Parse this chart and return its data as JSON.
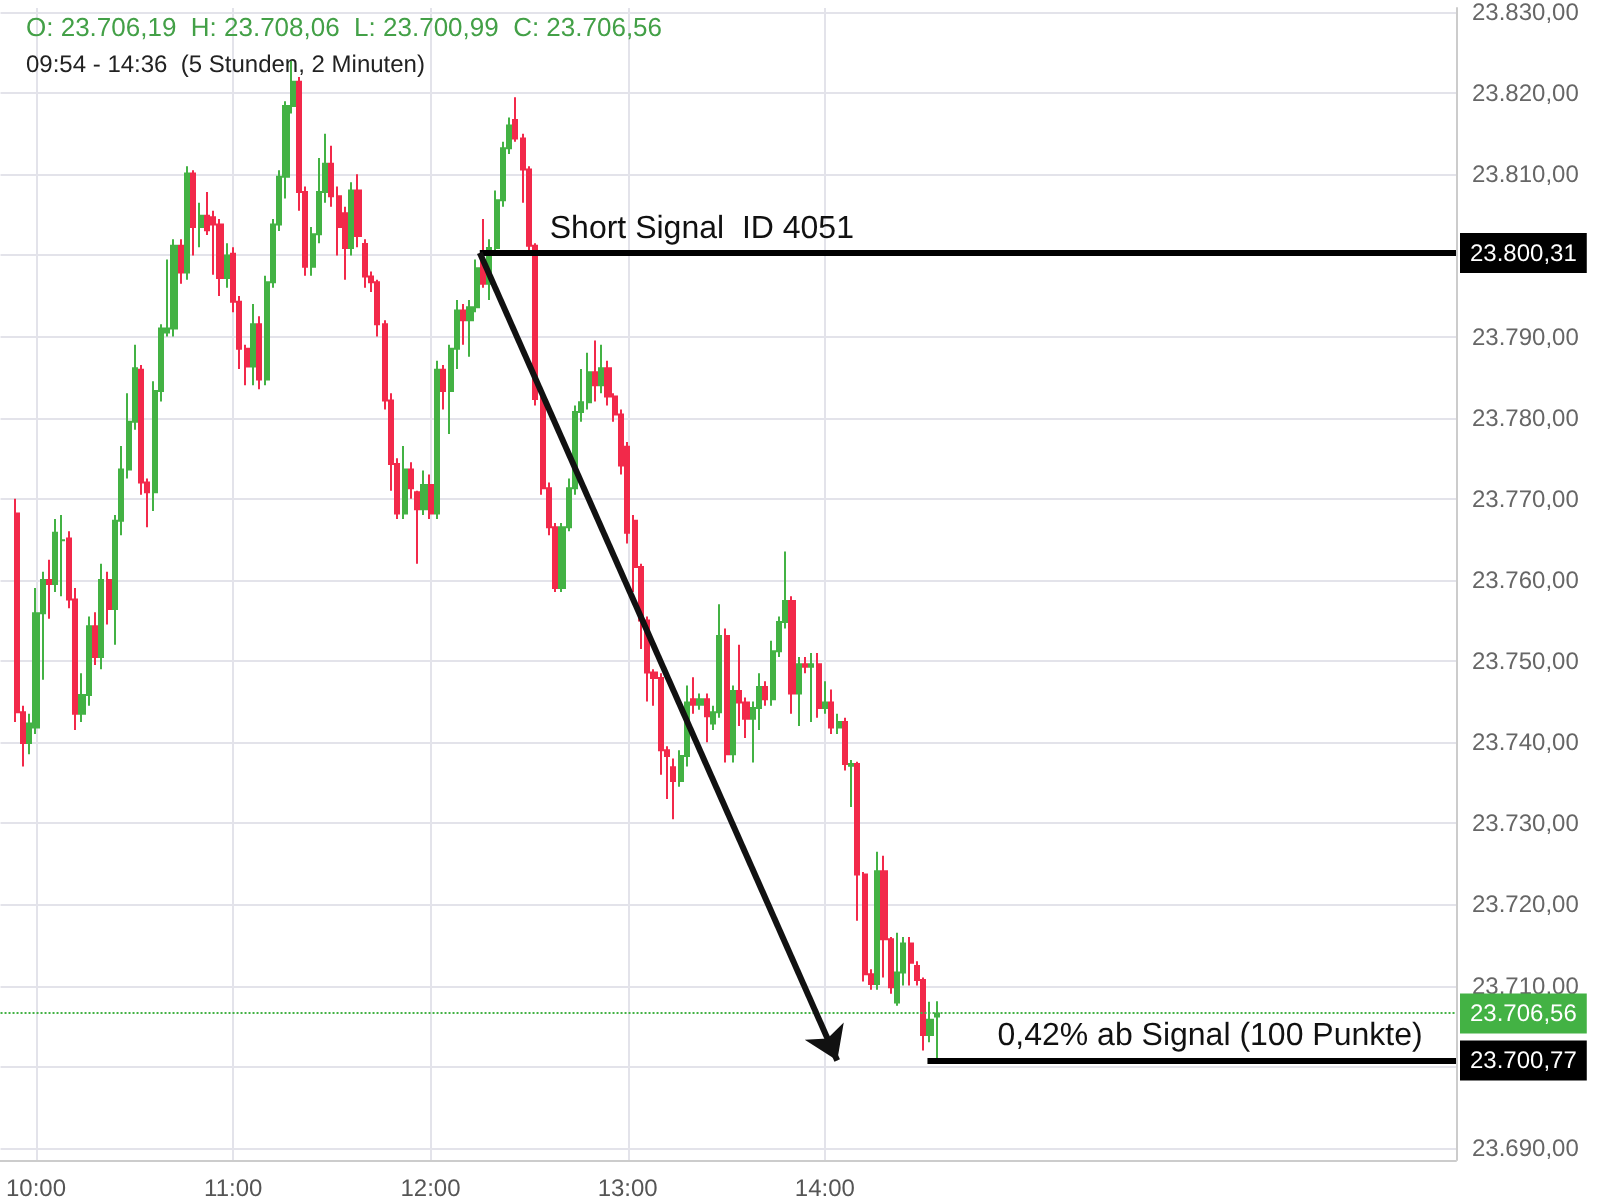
{
  "chart_data": {
    "type": "candlestick",
    "title": "O: 23.706,19  H: 23.708,06  L: 23.700,99  C: 23.706,56",
    "subtitle": "09:54 - 14:36  (5 Stunden, 2 Minuten)",
    "colors": [
      "#f2294a",
      "#f2294a",
      "#43b244",
      "#43b244",
      "#43b244",
      "#f2294a",
      "#43b244",
      "#43b244",
      "#f2294a",
      "#f2294a",
      "#43b244",
      "#43b244",
      "#f2294a",
      "#43b244",
      "#f2294a",
      "#43b244",
      "#43b244",
      "#43b244",
      "#43b244",
      "#f2294a",
      "#f2294a",
      "#43b244",
      "#43b244",
      "#43b244",
      "#43b244",
      "#f2294a",
      "#43b244",
      "#f2294a",
      "#43b244",
      "#f2294a",
      "#f2294a",
      "#f2294a",
      "#43b244",
      "#f2294a",
      "#f2294a",
      "#f2294a",
      "#43b244",
      "#f2294a",
      "#43b244",
      "#43b244",
      "#43b244",
      "#43b244",
      "#43b244",
      "#f2294a",
      "#f2294a",
      "#43b244",
      "#43b244",
      "#43b244",
      "#f2294a",
      "#f2294a",
      "#f2294a",
      "#43b244",
      "#f2294a",
      "#f2294a",
      "#f2294a",
      "#f2294a",
      "#f2294a",
      "#f2294a",
      "#f2294a",
      "#43b244",
      "#f2294a",
      "#f2294a",
      "#43b244",
      "#f2294a",
      "#43b244",
      "#f2294a",
      "#43b244",
      "#43b244",
      "#f2294a",
      "#43b244",
      "#43b244",
      "#f2294a",
      "#43b244",
      "#43b244",
      "#43b244",
      "#43b244",
      "#f2294a",
      "#f2294a",
      "#f2294a",
      "#f2294a",
      "#f2294a",
      "#f2294a",
      "#f2294a",
      "#43b244",
      "#43b244",
      "#43b244",
      "#43b244",
      "#43b244",
      "#f2294a",
      "#43b244",
      "#f2294a",
      "#f2294a",
      "#f2294a",
      "#f2294a",
      "#f2294a",
      "#f2294a",
      "#f2294a",
      "#f2294a",
      "#f2294a",
      "#f2294a",
      "#f2294a",
      "#43b244",
      "#43b244",
      "#f2294a",
      "#43b244",
      "#f2294a",
      "#43b244",
      "#43b244",
      "#f2294a",
      "#43b244",
      "#f2294a",
      "#f2294a",
      "#43b244",
      "#43b244",
      "#f2294a",
      "#43b244",
      "#43b244",
      "#43b244",
      "#f2294a",
      "#43b244",
      "#f2294a",
      "#43b244",
      "#f2294a",
      "#43b244",
      "#f2294a",
      "#43b244",
      "#f2294a",
      "#43b244",
      "#f2294a",
      "#f2294a",
      "#f2294a",
      "#43b244",
      "#f2294a",
      "#f2294a",
      "#43b244",
      "#43b244",
      "#f2294a",
      "#f2294a",
      "#f2294a",
      "#43b244",
      "#43b244"
    ],
    "x": [
      9.9,
      9.933,
      9.967,
      10,
      10.033,
      10.067,
      10.1,
      10.133,
      10.167,
      10.2,
      10.233,
      10.267,
      10.3,
      10.333,
      10.367,
      10.4,
      10.433,
      10.467,
      10.5,
      10.533,
      10.567,
      10.6,
      10.633,
      10.667,
      10.7,
      10.733,
      10.767,
      10.8,
      10.833,
      10.867,
      10.9,
      10.933,
      10.967,
      11,
      11.033,
      11.067,
      11.1,
      11.133,
      11.167,
      11.2,
      11.233,
      11.267,
      11.3,
      11.333,
      11.367,
      11.4,
      11.433,
      11.467,
      11.5,
      11.533,
      11.567,
      11.6,
      11.633,
      11.667,
      11.7,
      11.733,
      11.767,
      11.8,
      11.833,
      11.867,
      11.9,
      11.933,
      11.967,
      12,
      12.033,
      12.067,
      12.1,
      12.133,
      12.167,
      12.2,
      12.233,
      12.267,
      12.3,
      12.333,
      12.367,
      12.4,
      12.433,
      12.467,
      12.5,
      12.533,
      12.567,
      12.6,
      12.633,
      12.667,
      12.7,
      12.733,
      12.767,
      12.8,
      12.833,
      12.867,
      12.9,
      12.933,
      12.967,
      13,
      13.033,
      13.067,
      13.1,
      13.133,
      13.167,
      13.2,
      13.233,
      13.267,
      13.3,
      13.333,
      13.367,
      13.4,
      13.433,
      13.467,
      13.5,
      13.533,
      13.567,
      13.6,
      13.633,
      13.667,
      13.7,
      13.733,
      13.767,
      13.8,
      13.833,
      13.867,
      13.9,
      13.933,
      13.967,
      14,
      14.033,
      14.067,
      14.1,
      14.133,
      14.167,
      14.2,
      14.233,
      14.267,
      14.3,
      14.333,
      14.367,
      14.4,
      14.433,
      14.467,
      14.5,
      14.533,
      14.567
    ],
    "ohlc": [
      [
        23768.2,
        23770.0,
        23742.5,
        23743.7
      ],
      [
        23743.7,
        23744.5,
        23737.0,
        23739.9
      ],
      [
        23739.9,
        23743.5,
        23738.5,
        23742.3
      ],
      [
        23741.8,
        23759.0,
        23741.0,
        23755.9
      ],
      [
        23755.9,
        23761.0,
        23747.7,
        23760.0
      ],
      [
        23760.0,
        23762.5,
        23755.2,
        23759.5
      ],
      [
        23759.5,
        23767.5,
        23758.5,
        23765.8
      ],
      [
        23764.9,
        23768.0,
        23758.0,
        23764.9
      ],
      [
        23765.1,
        23766.0,
        23756.5,
        23757.6
      ],
      [
        23757.6,
        23759.0,
        23741.5,
        23743.5
      ],
      [
        23743.5,
        23748.5,
        23742.5,
        23745.8
      ],
      [
        23745.8,
        23755.5,
        23744.5,
        23754.3
      ],
      [
        23754.3,
        23756.0,
        23749.5,
        23750.5
      ],
      [
        23750.5,
        23762.0,
        23749.0,
        23760.0
      ],
      [
        23760.0,
        23761.0,
        23754.5,
        23756.4
      ],
      [
        23756.4,
        23768.0,
        23752.0,
        23767.3
      ],
      [
        23767.3,
        23776.5,
        23765.5,
        23773.6
      ],
      [
        23773.6,
        23783.0,
        23772.5,
        23779.5
      ],
      [
        23779.5,
        23789.0,
        23778.5,
        23786.1
      ],
      [
        23785.9,
        23786.5,
        23770.5,
        23772.0
      ],
      [
        23772.0,
        23772.5,
        23766.5,
        23770.8
      ],
      [
        23770.8,
        23784.5,
        23768.5,
        23783.3
      ],
      [
        23783.3,
        23791.5,
        23782.0,
        23791.0
      ],
      [
        23790.5,
        23799.5,
        23790.0,
        23791.0
      ],
      [
        23791.0,
        23802.0,
        23790.0,
        23801.2
      ],
      [
        23801.2,
        23802.0,
        23796.5,
        23797.9
      ],
      [
        23797.9,
        23811.0,
        23797.0,
        23810.1
      ],
      [
        23810.1,
        23810.5,
        23800.0,
        23803.5
      ],
      [
        23803.5,
        23806.5,
        23801.0,
        23804.9
      ],
      [
        23804.9,
        23807.8,
        23802.5,
        23803.1
      ],
      [
        23804.7,
        23805.5,
        23797.6,
        23803.8
      ],
      [
        23803.8,
        23804.5,
        23795.0,
        23797.2
      ],
      [
        23797.2,
        23801.5,
        23796.0,
        23800.0
      ],
      [
        23800.2,
        23801.0,
        23793.0,
        23794.3
      ],
      [
        23794.3,
        23795.0,
        23786.0,
        23788.5
      ],
      [
        23788.5,
        23789.0,
        23784.0,
        23786.3
      ],
      [
        23786.3,
        23794.0,
        23784.0,
        23791.5
      ],
      [
        23791.5,
        23792.5,
        23783.5,
        23784.7
      ],
      [
        23784.7,
        23797.5,
        23784.0,
        23796.7
      ],
      [
        23796.7,
        23804.5,
        23796.0,
        23803.8
      ],
      [
        23803.8,
        23810.5,
        23803.0,
        23809.7
      ],
      [
        23809.7,
        23819.0,
        23807.0,
        23818.4
      ],
      [
        23818.4,
        23824.0,
        23817.5,
        23821.4
      ],
      [
        23821.4,
        23822.0,
        23805.5,
        23807.8
      ],
      [
        23807.8,
        23808.5,
        23797.5,
        23798.6
      ],
      [
        23798.6,
        23803.5,
        23797.5,
        23802.6
      ],
      [
        23802.6,
        23812.0,
        23801.5,
        23807.8
      ],
      [
        23807.8,
        23815.0,
        23806.5,
        23811.3
      ],
      [
        23811.3,
        23813.5,
        23806.0,
        23807.3
      ],
      [
        23807.3,
        23808.5,
        23800.0,
        23803.5
      ],
      [
        23805.2,
        23806.0,
        23797.0,
        23800.9
      ],
      [
        23800.9,
        23809.0,
        23800.0,
        23808.0
      ],
      [
        23808.0,
        23810.0,
        23801.0,
        23802.4
      ],
      [
        23801.4,
        23802.0,
        23796.0,
        23797.4
      ],
      [
        23797.4,
        23798.0,
        23795.5,
        23796.7
      ],
      [
        23796.7,
        23797.0,
        23790.0,
        23791.5
      ],
      [
        23791.5,
        23792.0,
        23781.0,
        23782.1
      ],
      [
        23782.1,
        23783.0,
        23771.0,
        23774.3
      ],
      [
        23774.3,
        23775.0,
        23767.5,
        23768.2
      ],
      [
        23768.2,
        23776.5,
        23767.5,
        23773.6
      ],
      [
        23773.6,
        23774.5,
        23770.0,
        23771.3
      ],
      [
        23770.8,
        23771.0,
        23762.0,
        23768.7
      ],
      [
        23768.7,
        23773.5,
        23768.0,
        23771.7
      ],
      [
        23771.7,
        23773.0,
        23767.5,
        23768.2
      ],
      [
        23768.2,
        23787.0,
        23767.5,
        23785.9
      ],
      [
        23785.9,
        23786.5,
        23781.0,
        23783.3
      ],
      [
        23783.3,
        23789.0,
        23778.0,
        23788.5
      ],
      [
        23788.5,
        23794.5,
        23786.0,
        23793.2
      ],
      [
        23793.2,
        23794.0,
        23789.0,
        23792.0
      ],
      [
        23792.0,
        23794.5,
        23787.5,
        23793.6
      ],
      [
        23793.6,
        23799.5,
        23793.0,
        23798.4
      ],
      [
        23799.3,
        23804.5,
        23796.0,
        23796.5
      ],
      [
        23796.5,
        23802.0,
        23794.5,
        23800.9
      ],
      [
        23800.9,
        23808.0,
        23800.0,
        23806.8
      ],
      [
        23806.8,
        23814.0,
        23806.0,
        23813.2
      ],
      [
        23813.2,
        23817.0,
        23812.5,
        23816.0
      ],
      [
        23816.7,
        23819.5,
        23814.0,
        23814.4
      ],
      [
        23814.4,
        23815.0,
        23806.5,
        23810.6
      ],
      [
        23810.6,
        23811.0,
        23800.5,
        23801.2
      ],
      [
        23801.2,
        23801.5,
        23781.5,
        23782.3
      ],
      [
        23782.3,
        23783.0,
        23770.5,
        23771.3
      ],
      [
        23771.3,
        23772.0,
        23765.5,
        23766.5
      ],
      [
        23766.5,
        23767.0,
        23758.5,
        23759.0
      ],
      [
        23759.0,
        23767.0,
        23758.5,
        23766.5
      ],
      [
        23766.5,
        23772.5,
        23766.0,
        23771.3
      ],
      [
        23771.3,
        23781.5,
        23770.5,
        23780.7
      ],
      [
        23780.7,
        23786.0,
        23779.5,
        23781.9
      ],
      [
        23781.9,
        23788.0,
        23781.0,
        23785.6
      ],
      [
        23785.6,
        23789.5,
        23782.0,
        23784.0
      ],
      [
        23784.0,
        23789.0,
        23783.0,
        23786.1
      ],
      [
        23786.1,
        23787.0,
        23781.5,
        23782.6
      ],
      [
        23782.6,
        23783.0,
        23779.5,
        23780.4
      ],
      [
        23780.4,
        23781.0,
        23773.0,
        23774.1
      ],
      [
        23776.4,
        23777.0,
        23764.5,
        23765.8
      ],
      [
        23767.3,
        23768.0,
        23758.5,
        23761.6
      ],
      [
        23761.6,
        23762.0,
        23751.5,
        23755.0
      ],
      [
        23755.0,
        23755.5,
        23745.0,
        23748.6
      ],
      [
        23748.6,
        23749.0,
        23744.5,
        23747.9
      ],
      [
        23747.9,
        23748.5,
        23736.0,
        23739.0
      ],
      [
        23739.0,
        23739.5,
        23733.0,
        23738.3
      ],
      [
        23736.9,
        23738.0,
        23730.5,
        23735.2
      ],
      [
        23735.2,
        23739.0,
        23734.5,
        23738.3
      ],
      [
        23738.3,
        23747.0,
        23737.0,
        23744.9
      ],
      [
        23745.3,
        23748.0,
        23743.5,
        23744.6
      ],
      [
        23744.6,
        23746.0,
        23744.0,
        23745.3
      ],
      [
        23745.3,
        23746.0,
        23740.0,
        23743.2
      ],
      [
        23742.3,
        23744.5,
        23741.5,
        23743.7
      ],
      [
        23743.7,
        23757.0,
        23743.0,
        23753.1
      ],
      [
        23753.1,
        23754.0,
        23737.5,
        23738.5
      ],
      [
        23738.5,
        23747.0,
        23737.5,
        23746.3
      ],
      [
        23746.3,
        23752.0,
        23742.0,
        23744.9
      ],
      [
        23744.9,
        23745.5,
        23740.5,
        23742.9
      ],
      [
        23742.9,
        23745.0,
        23737.5,
        23744.2
      ],
      [
        23744.2,
        23748.5,
        23741.5,
        23746.8
      ],
      [
        23746.8,
        23747.5,
        23744.5,
        23745.3
      ],
      [
        23745.3,
        23752.5,
        23744.5,
        23751.2
      ],
      [
        23751.2,
        23755.5,
        23750.5,
        23754.8
      ],
      [
        23754.8,
        23763.5,
        23754.0,
        23757.4
      ],
      [
        23757.4,
        23758.0,
        23743.5,
        23746.0
      ],
      [
        23746.0,
        23750.5,
        23742.0,
        23749.6
      ],
      [
        23749.6,
        23750.5,
        23748.5,
        23749.3
      ],
      [
        23749.3,
        23751.0,
        23742.5,
        23749.6
      ],
      [
        23749.6,
        23751.0,
        23743.0,
        23744.2
      ],
      [
        23744.2,
        23747.5,
        23743.5,
        23744.9
      ],
      [
        23744.9,
        23746.5,
        23741.0,
        23741.8
      ],
      [
        23741.8,
        23743.5,
        23741.0,
        23742.5
      ],
      [
        23742.5,
        23743.0,
        23736.5,
        23737.3
      ],
      [
        23737.1,
        23737.8,
        23732.0,
        23737.3
      ],
      [
        23737.3,
        23737.6,
        23718.0,
        23723.7
      ],
      [
        23723.7,
        23724.0,
        23710.5,
        23711.4
      ],
      [
        23711.4,
        23712.0,
        23709.5,
        23710.2
      ],
      [
        23710.2,
        23726.5,
        23709.5,
        23724.1
      ],
      [
        23724.1,
        23726.0,
        23711.0,
        23715.7
      ],
      [
        23715.7,
        23716.0,
        23709.0,
        23709.8
      ],
      [
        23707.9,
        23716.5,
        23707.5,
        23711.6
      ],
      [
        23711.6,
        23716.0,
        23710.0,
        23715.2
      ],
      [
        23715.2,
        23716.0,
        23710.0,
        23712.8
      ],
      [
        23712.4,
        23713.0,
        23710.0,
        23710.7
      ],
      [
        23710.7,
        23711.0,
        23702.0,
        23703.9
      ],
      [
        23703.9,
        23708.0,
        23703.0,
        23705.8
      ],
      [
        23706.19,
        23708.06,
        23700.99,
        23706.56
      ]
    ],
    "xlim": [
      9.82,
      17.2
    ],
    "xticks": [
      {
        "value": 10,
        "label": "10:00"
      },
      {
        "value": 11,
        "label": "11:00"
      },
      {
        "value": 12,
        "label": "12:00"
      },
      {
        "value": 13,
        "label": "13:00"
      },
      {
        "value": 14,
        "label": "14:00"
      }
    ],
    "ylim": [
      23688.5,
      23830.5
    ],
    "yticks": [
      {
        "value": 23690,
        "label": "23.690,00"
      },
      {
        "value": 23700,
        "label": null
      },
      {
        "value": 23710,
        "label": "23.710,00"
      },
      {
        "value": 23720,
        "label": "23.720,00"
      },
      {
        "value": 23730,
        "label": "23.730,00"
      },
      {
        "value": 23740,
        "label": "23.740,00"
      },
      {
        "value": 23750,
        "label": "23.750,00"
      },
      {
        "value": 23760,
        "label": "23.760,00"
      },
      {
        "value": 23770,
        "label": "23.770,00"
      },
      {
        "value": 23780,
        "label": "23.780,00"
      },
      {
        "value": 23790,
        "label": "23.790,00"
      },
      {
        "value": 23800,
        "label": null
      },
      {
        "value": 23810,
        "label": "23.810,00"
      },
      {
        "value": 23820,
        "label": "23.820,00"
      },
      {
        "value": 23830,
        "label": "23.830,00"
      }
    ],
    "ref_lines": [
      {
        "axis": "y",
        "value": 23800.31,
        "label": "23.800,31",
        "color": "#000000"
      },
      {
        "axis": "y",
        "value": 23706.56,
        "label": "23.706,56",
        "color": "#43b244",
        "line_style": "dotted"
      },
      {
        "axis": "y",
        "value": 23700.77,
        "label": "23.700,77",
        "color": "#000000"
      }
    ],
    "annotations": [
      {
        "text": "Short Signal  ID 4051",
        "x": 12.25,
        "y": 23800.31
      },
      {
        "text": "0,42% ab Signal (100 Punkte)",
        "x": 14.52,
        "y": 23700.77
      }
    ],
    "grid": true
  }
}
